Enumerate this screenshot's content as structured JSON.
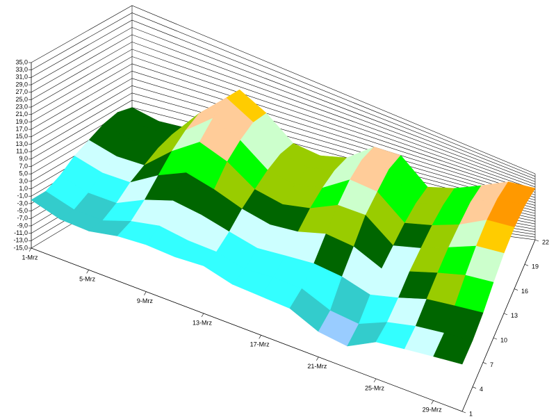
{
  "chart_data": {
    "type": "surface",
    "categories": [
      "1-Mrz",
      null,
      "5-Mrz",
      null,
      "9-Mrz",
      null,
      "13-Mrz",
      null,
      "17-Mrz",
      null,
      "21-Mrz",
      null,
      "25-Mrz",
      null,
      "29-Mrz",
      null
    ],
    "depth": [
      1,
      4,
      7,
      10,
      13,
      16,
      19,
      22
    ],
    "values": [
      [
        -2,
        -4,
        -4,
        -2,
        -1,
        -1,
        0,
        -2,
        -2,
        -2,
        -6,
        -7,
        -1,
        1,
        3,
        5
      ],
      [
        -2,
        -4,
        -4,
        -1,
        1,
        0,
        0,
        -2,
        -1,
        -1,
        -5,
        -6,
        -1,
        2,
        4,
        6
      ],
      [
        0,
        -2,
        -2,
        2,
        5,
        4,
        2,
        0,
        1,
        2,
        1,
        -2,
        1,
        5,
        7,
        9
      ],
      [
        3,
        1,
        1,
        6,
        10,
        8,
        5,
        3,
        4,
        7,
        6,
        1,
        4,
        8,
        12,
        14
      ],
      [
        5,
        3,
        3,
        10,
        16,
        13,
        7,
        5,
        7,
        12,
        12,
        3,
        6,
        11,
        17,
        19
      ],
      [
        7,
        5,
        5,
        13,
        20,
        16,
        9,
        7,
        9,
        16,
        15,
        5,
        8,
        13,
        21,
        23
      ],
      [
        8,
        6,
        6,
        15,
        23,
        18,
        10,
        8,
        10,
        18,
        18,
        6,
        9,
        15,
        23,
        25
      ],
      [
        7,
        5,
        5,
        14,
        22,
        17,
        9,
        7,
        9,
        17,
        17,
        5,
        8,
        14,
        22,
        24
      ]
    ],
    "zlim": [
      -15,
      35
    ],
    "zticks": [
      {
        "value": -15,
        "label": "-15,0"
      },
      {
        "value": -13,
        "label": "-13,0"
      },
      {
        "value": -11,
        "label": "-11,0"
      },
      {
        "value": -9,
        "label": "-9,0"
      },
      {
        "value": -7,
        "label": "-7,0"
      },
      {
        "value": -5,
        "label": "-5,0"
      },
      {
        "value": -3,
        "label": "-3,0"
      },
      {
        "value": -1,
        "label": "-1,0"
      },
      {
        "value": 1,
        "label": "1,0"
      },
      {
        "value": 3,
        "label": "3,0"
      },
      {
        "value": 5,
        "label": "5,0"
      },
      {
        "value": 7,
        "label": "7,0"
      },
      {
        "value": 9,
        "label": "9,0"
      },
      {
        "value": 11,
        "label": "11,0"
      },
      {
        "value": 13,
        "label": "13,0"
      },
      {
        "value": 15,
        "label": "15,0"
      },
      {
        "value": 17,
        "label": "17,0"
      },
      {
        "value": 19,
        "label": "19,0"
      },
      {
        "value": 21,
        "label": "21,0"
      },
      {
        "value": 23,
        "label": "23,0"
      },
      {
        "value": 25,
        "label": "25,0"
      },
      {
        "value": 27,
        "label": "27,0"
      },
      {
        "value": 29,
        "label": "29,0"
      },
      {
        "value": 31,
        "label": "31,0"
      },
      {
        "value": 33,
        "label": "33,0"
      },
      {
        "value": 35,
        "label": "35,0"
      }
    ],
    "colors": [
      "#6666ff",
      "#7fa8ff",
      "#99ccff",
      "#33cccc",
      "#33ffff",
      "#ccffff",
      "#006600",
      "#99cc00",
      "#00ff00",
      "#ccffcc",
      "#ffcc99",
      "#ffcc00",
      "#ff9900",
      "#ff6600",
      "#ff3300",
      "#cc0000"
    ],
    "grid": true
  }
}
